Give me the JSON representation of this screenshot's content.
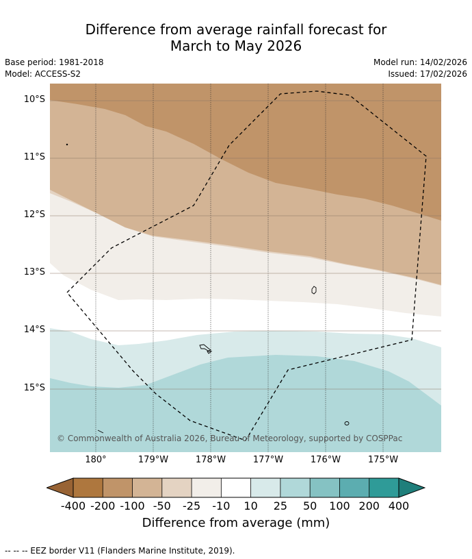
{
  "title": {
    "line1": "Difference from average rainfall forecast for",
    "line2": "March to May 2026"
  },
  "meta": {
    "base_period": "Base period: 1981-2018",
    "model": "Model: ACCESS-S2",
    "model_run": "Model run: 14/02/2026",
    "issued": "Issued: 17/02/2026"
  },
  "axes": {
    "lat_labels": [
      "10°S",
      "11°S",
      "12°S",
      "13°S",
      "14°S",
      "15°S"
    ],
    "lon_labels": [
      "180°",
      "179°W",
      "178°W",
      "177°W",
      "176°W",
      "175°W"
    ]
  },
  "copyright": "© Commonwealth of Australia 2026, Bureau of Meteorology, supported by COSPPac",
  "colorbar": {
    "labels": [
      "-400",
      "-200",
      "-100",
      "-50",
      "-25",
      "-10",
      "10",
      "25",
      "50",
      "100",
      "200",
      "400"
    ],
    "colors": [
      "#986334",
      "#ae773e",
      "#c09469",
      "#d3b495",
      "#e4d3c2",
      "#f2eee9",
      "#ffffff",
      "#d8eaea",
      "#b0d8d9",
      "#85c2c3",
      "#5cadb0",
      "#2f9b98",
      "#1f7f7b"
    ],
    "title": "Difference from average (mm)"
  },
  "footnote": "--  --  -- EEZ border V11 (Flanders Marine Institute, 2019)."
}
